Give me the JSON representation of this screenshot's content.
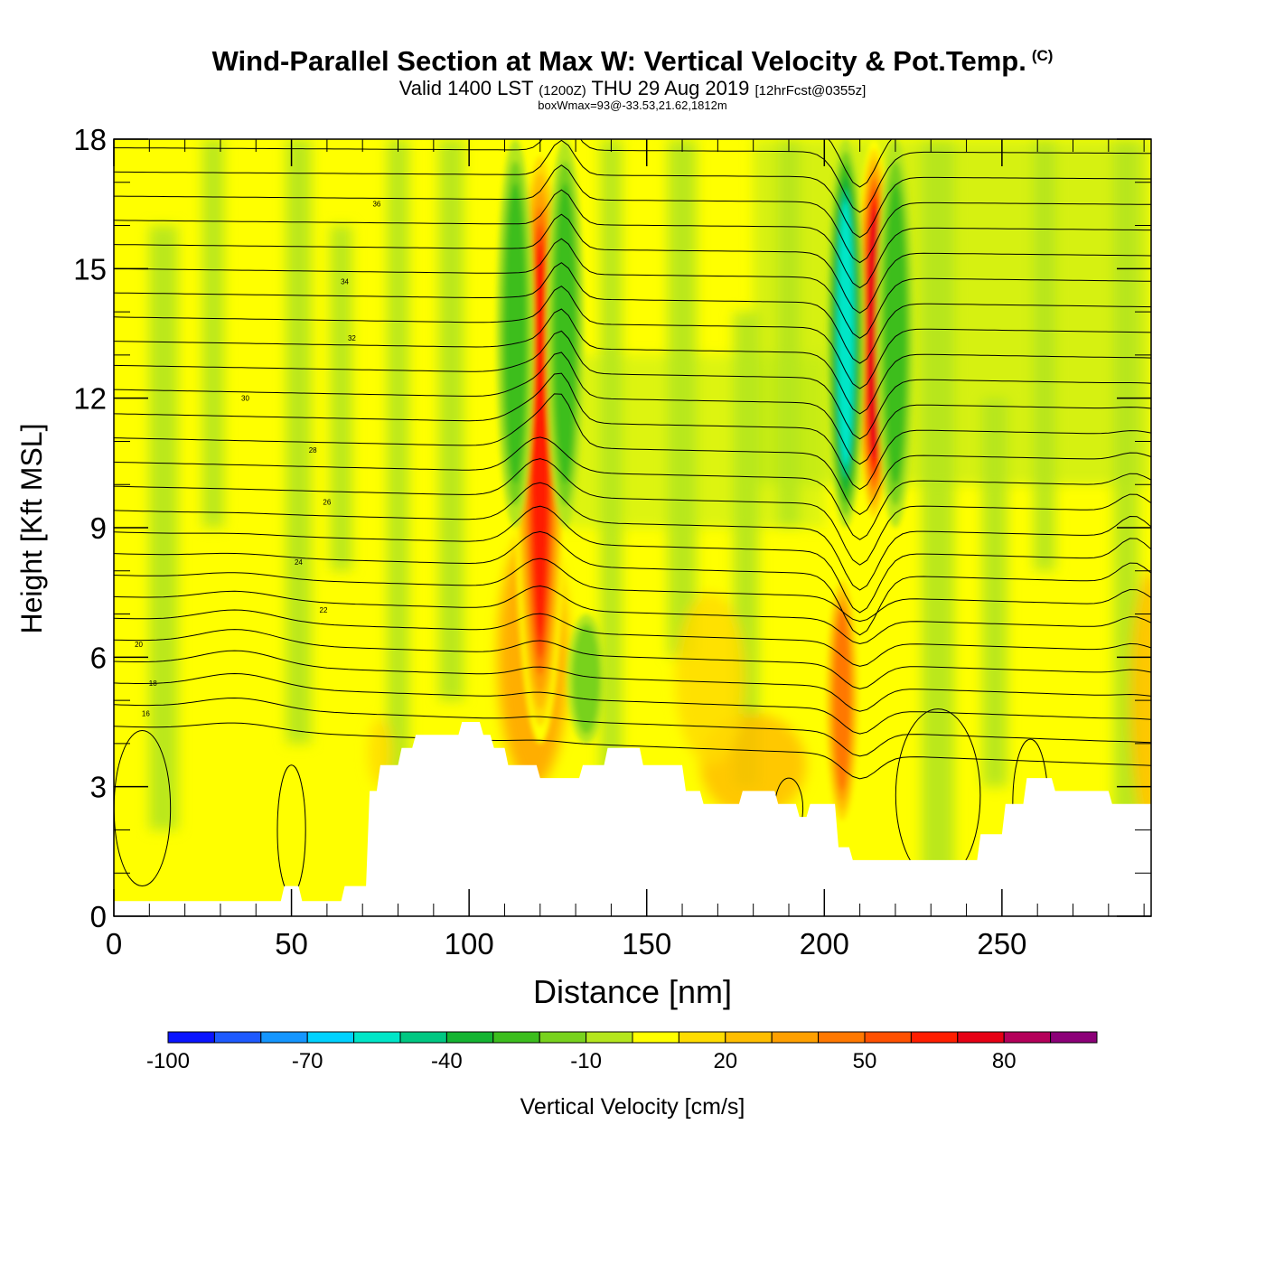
{
  "title": "Wind-Parallel Section at Max W: Vertical Velocity & Pot.Temp.",
  "title_mark": "(C)",
  "subtitle": {
    "valid": "Valid 1400 LST",
    "utc": "(1200Z)",
    "date": "THU 29 Aug 2019",
    "fcst": "[12hrFcst@0355z]"
  },
  "subtitle2": "boxWmax=93@-33.53,21.62,1812m",
  "chart_data": {
    "type": "heatmap",
    "xlabel": "Distance [nm]",
    "ylabel": "Height [Kft MSL]",
    "xlim": [
      0,
      292
    ],
    "ylim": [
      0,
      18
    ],
    "x_ticks": [
      "0",
      "50",
      "100",
      "150",
      "200",
      "250"
    ],
    "y_ticks": [
      "0",
      "3",
      "6",
      "9",
      "12",
      "15",
      "18"
    ],
    "colorbar": {
      "label": "Vertical Velocity [cm/s]",
      "levels": [
        -100,
        -90,
        -80,
        -70,
        -60,
        -50,
        -40,
        -30,
        -20,
        -10,
        0,
        10,
        20,
        30,
        40,
        50,
        60,
        70,
        80,
        90,
        100
      ],
      "tick_labels": [
        "-100",
        "-70",
        "-40",
        "-10",
        "20",
        "50",
        "80"
      ],
      "colors": [
        "#0a14ff",
        "#1e5aff",
        "#1496ff",
        "#00d2ff",
        "#00e6c8",
        "#00c882",
        "#14b432",
        "#3cbe1e",
        "#78d21e",
        "#b4e61e",
        "#ffff00",
        "#ffdc00",
        "#ffbe00",
        "#ffa000",
        "#ff7800",
        "#ff5000",
        "#ff1e00",
        "#e60014",
        "#b4005a",
        "#8c0078"
      ]
    },
    "velocity_features": [
      {
        "x": 120,
        "y_bottom": 4,
        "y_top": 18,
        "w_max": 70,
        "kind": "updraft"
      },
      {
        "x": 113,
        "y_bottom": 9,
        "y_top": 18,
        "w_max": -35,
        "kind": "downdraft"
      },
      {
        "x": 127,
        "y_bottom": 9,
        "y_top": 18,
        "w_max": -35,
        "kind": "downdraft"
      },
      {
        "x": 214,
        "y_bottom": 9,
        "y_top": 18,
        "w_max": 80,
        "kind": "updraft"
      },
      {
        "x": 206,
        "y_bottom": 9,
        "y_top": 18,
        "w_max": -65,
        "kind": "downdraft"
      },
      {
        "x": 220,
        "y_bottom": 9,
        "y_top": 18,
        "w_max": -35,
        "kind": "downdraft"
      },
      {
        "x": 205,
        "y_bottom": 2,
        "y_top": 8,
        "w_max": 50,
        "kind": "updraft"
      },
      {
        "x": 133,
        "y_bottom": 4,
        "y_top": 7,
        "w_max": -25,
        "kind": "downdraft"
      }
    ],
    "pot_temp_contour_labels": [
      "16",
      "18",
      "20",
      "22",
      "24",
      "26",
      "28",
      "30",
      "32",
      "34",
      "36"
    ],
    "terrain": {
      "x": [
        0,
        47,
        48,
        52,
        53,
        58,
        59,
        64,
        65,
        71,
        72,
        74,
        75,
        80,
        81,
        84,
        85,
        90,
        91,
        97,
        98,
        103,
        104,
        106,
        107,
        110,
        111,
        119,
        120,
        131,
        132,
        138,
        139,
        148,
        149,
        160,
        161,
        165,
        166,
        176,
        177,
        186,
        187,
        192,
        193,
        195,
        196,
        203,
        204,
        207,
        208,
        223,
        224,
        243,
        244,
        250,
        251,
        256,
        257,
        264,
        265,
        280,
        281,
        292
      ],
      "height_kft": [
        0.35,
        0.35,
        0.7,
        0.7,
        0.35,
        0.35,
        0.35,
        0.35,
        0.7,
        0.7,
        2.9,
        2.9,
        3.5,
        3.5,
        3.9,
        3.9,
        4.2,
        4.2,
        4.2,
        4.2,
        4.5,
        4.5,
        4.2,
        4.2,
        3.9,
        3.9,
        3.5,
        3.5,
        3.2,
        3.2,
        3.5,
        3.5,
        3.9,
        3.9,
        3.5,
        3.5,
        2.9,
        2.9,
        2.6,
        2.6,
        2.9,
        2.9,
        2.6,
        2.6,
        2.3,
        2.3,
        2.6,
        2.6,
        1.6,
        1.6,
        1.3,
        1.3,
        1.3,
        1.3,
        1.9,
        1.9,
        2.6,
        2.6,
        3.2,
        3.2,
        2.9,
        2.9,
        2.6,
        2.6
      ]
    }
  }
}
